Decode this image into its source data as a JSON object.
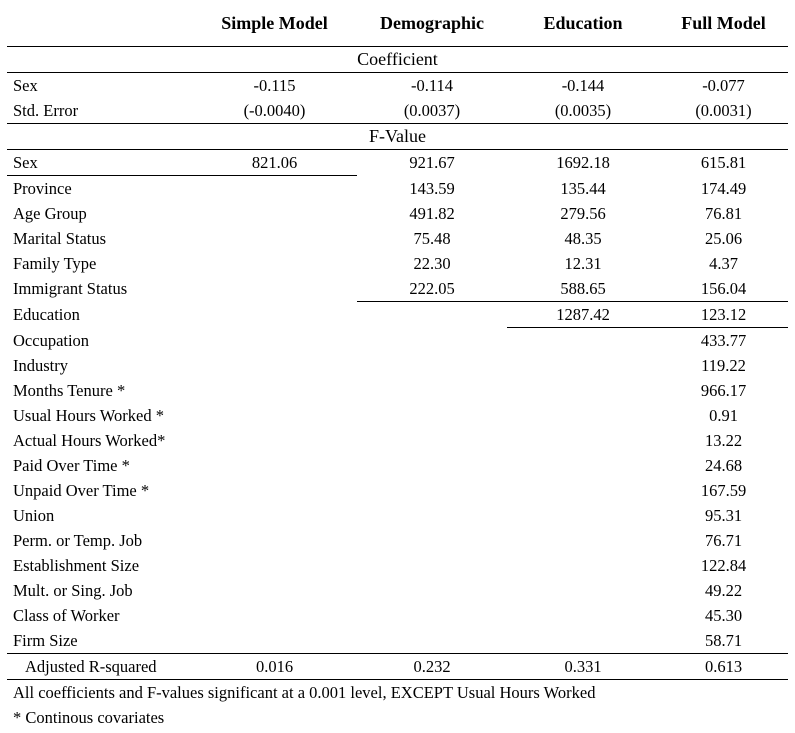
{
  "columns": [
    "",
    "Simple Model",
    "Demographic",
    "Education",
    "Full Model"
  ],
  "sections": {
    "coefficient": "Coefficient",
    "fvalue": "F-Value"
  },
  "coef_rows": [
    {
      "label": "Sex",
      "values": [
        "-0.115",
        "-0.114",
        "-0.144",
        "-0.077"
      ]
    },
    {
      "label": "Std. Error",
      "values": [
        "(-0.0040)",
        "(0.0037)",
        "(0.0035)",
        "(0.0031)"
      ]
    }
  ],
  "f_rows": [
    {
      "label": "Sex",
      "values": [
        "821.06",
        "921.67",
        "1692.18",
        "615.81"
      ]
    },
    {
      "label": "Province",
      "values": [
        "",
        "143.59",
        "135.44",
        "174.49"
      ]
    },
    {
      "label": "Age Group",
      "values": [
        "",
        "491.82",
        "279.56",
        "76.81"
      ]
    },
    {
      "label": "Marital Status",
      "values": [
        "",
        "75.48",
        "48.35",
        "25.06"
      ]
    },
    {
      "label": "Family Type",
      "values": [
        "",
        "22.30",
        "12.31",
        "4.37"
      ]
    },
    {
      "label": "Immigrant Status",
      "values": [
        "",
        "222.05",
        "588.65",
        "156.04"
      ]
    },
    {
      "label": "Education",
      "values": [
        "",
        "",
        "1287.42",
        "123.12"
      ]
    },
    {
      "label": "Occupation",
      "values": [
        "",
        "",
        "",
        "433.77"
      ]
    },
    {
      "label": "Industry",
      "values": [
        "",
        "",
        "",
        "119.22"
      ]
    },
    {
      "label": "Months Tenure *",
      "values": [
        "",
        "",
        "",
        "966.17"
      ]
    },
    {
      "label": "Usual Hours Worked *",
      "values": [
        "",
        "",
        "",
        "0.91"
      ]
    },
    {
      "label": "Actual Hours Worked*",
      "values": [
        "",
        "",
        "",
        "13.22"
      ]
    },
    {
      "label": "Paid Over Time *",
      "values": [
        "",
        "",
        "",
        "24.68"
      ]
    },
    {
      "label": "Unpaid Over Time *",
      "values": [
        "",
        "",
        "",
        "167.59"
      ]
    },
    {
      "label": "Union",
      "values": [
        "",
        "",
        "",
        "95.31"
      ]
    },
    {
      "label": "Perm. or Temp. Job",
      "values": [
        "",
        "",
        "",
        "76.71"
      ]
    },
    {
      "label": "Establishment Size",
      "values": [
        "",
        "",
        "",
        "122.84"
      ]
    },
    {
      "label": "Mult. or Sing. Job",
      "values": [
        "",
        "",
        "",
        "49.22"
      ]
    },
    {
      "label": "Class of Worker",
      "values": [
        "",
        "",
        "",
        "45.30"
      ]
    },
    {
      "label": "Firm Size",
      "values": [
        "",
        "",
        "",
        "58.71"
      ]
    }
  ],
  "r2_row": {
    "label": "Adjusted R-squared",
    "values": [
      "0.016",
      "0.232",
      "0.331",
      "0.613"
    ]
  },
  "notes": [
    "All coefficients and F-values significant at a 0.001 level, EXCEPT Usual Hours Worked",
    "* Continous covariates"
  ]
}
